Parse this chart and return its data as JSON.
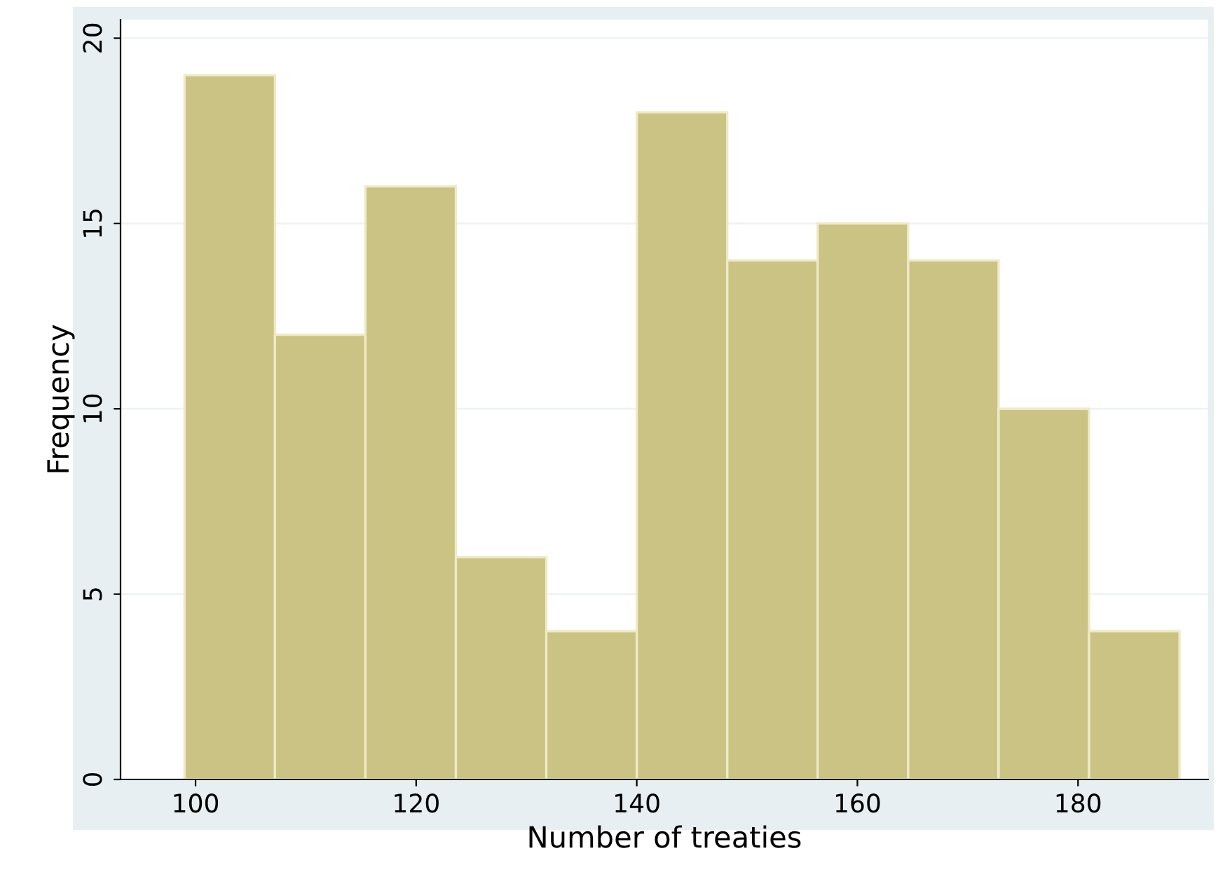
{
  "chart_data": {
    "type": "histogram",
    "xlabel": "Number of treaties",
    "ylabel": "Frequency",
    "bins": [
      99,
      107.2,
      115.4,
      123.6,
      131.8,
      140,
      148.2,
      156.4,
      164.6,
      172.8,
      181,
      189.2
    ],
    "values": [
      19,
      12,
      16,
      6,
      4,
      18,
      14,
      15,
      14,
      10,
      4
    ],
    "color": "#cbc383",
    "xlim": [
      93.2,
      191.8
    ],
    "xticks": [
      100,
      120,
      140,
      160,
      180
    ],
    "ylim": [
      0,
      20.5
    ],
    "yticks": [
      0,
      5,
      10,
      15,
      20
    ],
    "grid": "y"
  }
}
